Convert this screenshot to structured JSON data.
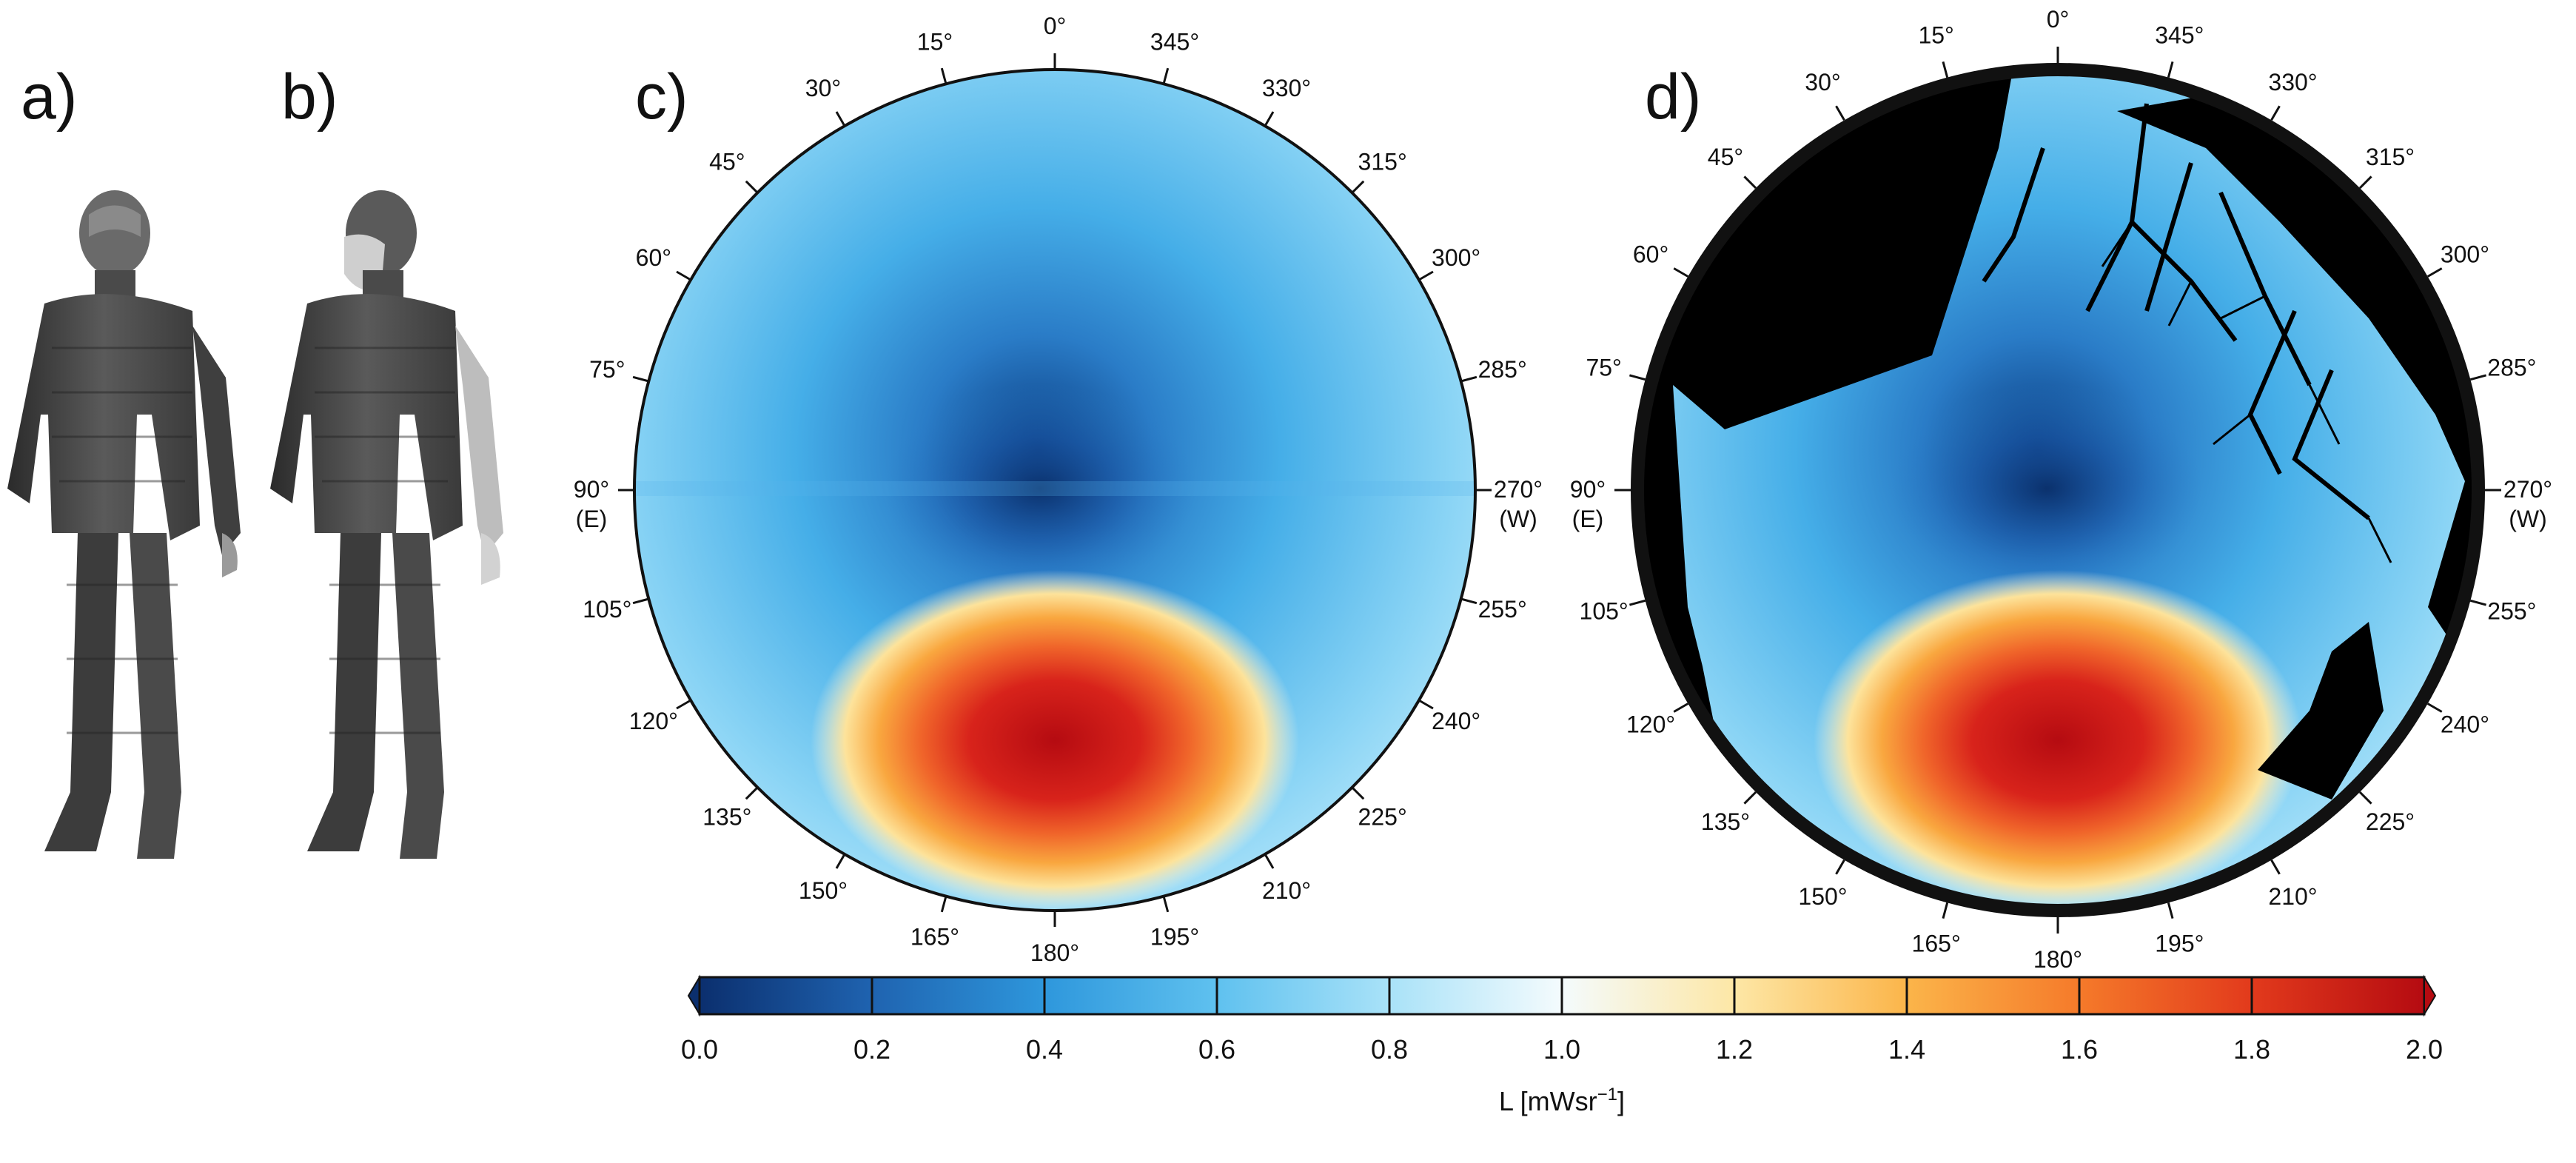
{
  "figure": {
    "panels": [
      {
        "id": "a",
        "label": "a)",
        "kind": "voxel human model (standing)"
      },
      {
        "id": "b",
        "label": "b)",
        "kind": "voxel human model (standing, shaded)"
      },
      {
        "id": "c",
        "label": "c)",
        "kind": "sky radiance hemisphere"
      },
      {
        "id": "d",
        "label": "d)",
        "kind": "sky radiance hemisphere with tree/obstacle mask"
      }
    ],
    "polar_angles": [
      {
        "deg": 0,
        "label": "0°"
      },
      {
        "deg": 15,
        "label": "15°"
      },
      {
        "deg": 30,
        "label": "30°"
      },
      {
        "deg": 45,
        "label": "45°"
      },
      {
        "deg": 60,
        "label": "60°"
      },
      {
        "deg": 75,
        "label": "75°"
      },
      {
        "deg": 90,
        "label": "90°",
        "sub": "(E)"
      },
      {
        "deg": 105,
        "label": "105°"
      },
      {
        "deg": 120,
        "label": "120°"
      },
      {
        "deg": 135,
        "label": "135°"
      },
      {
        "deg": 150,
        "label": "150°"
      },
      {
        "deg": 165,
        "label": "165°"
      },
      {
        "deg": 180,
        "label": "180°"
      },
      {
        "deg": 195,
        "label": "195°"
      },
      {
        "deg": 210,
        "label": "210°"
      },
      {
        "deg": 225,
        "label": "225°"
      },
      {
        "deg": 240,
        "label": "240°"
      },
      {
        "deg": 255,
        "label": "255°"
      },
      {
        "deg": 270,
        "label": "270°",
        "sub": "(W)"
      },
      {
        "deg": 285,
        "label": "285°"
      },
      {
        "deg": 300,
        "label": "300°"
      },
      {
        "deg": 315,
        "label": "315°"
      },
      {
        "deg": 330,
        "label": "330°"
      },
      {
        "deg": 345,
        "label": "345°"
      }
    ],
    "colorbar": {
      "ticks": [
        "0.0",
        "0.2",
        "0.4",
        "0.6",
        "0.8",
        "1.0",
        "1.2",
        "1.4",
        "1.6",
        "1.8",
        "2.0"
      ],
      "unit": "L [mWsr",
      "unit_sup": "−1",
      "unit_close": "]",
      "colors": [
        "#0b2f6e",
        "#1f63b0",
        "#2e97dc",
        "#5fc1ef",
        "#a9e2f8",
        "#f4fbfd",
        "#fde7a6",
        "#fbb54a",
        "#f57a2a",
        "#e23a1c",
        "#b50b11"
      ]
    }
  }
}
